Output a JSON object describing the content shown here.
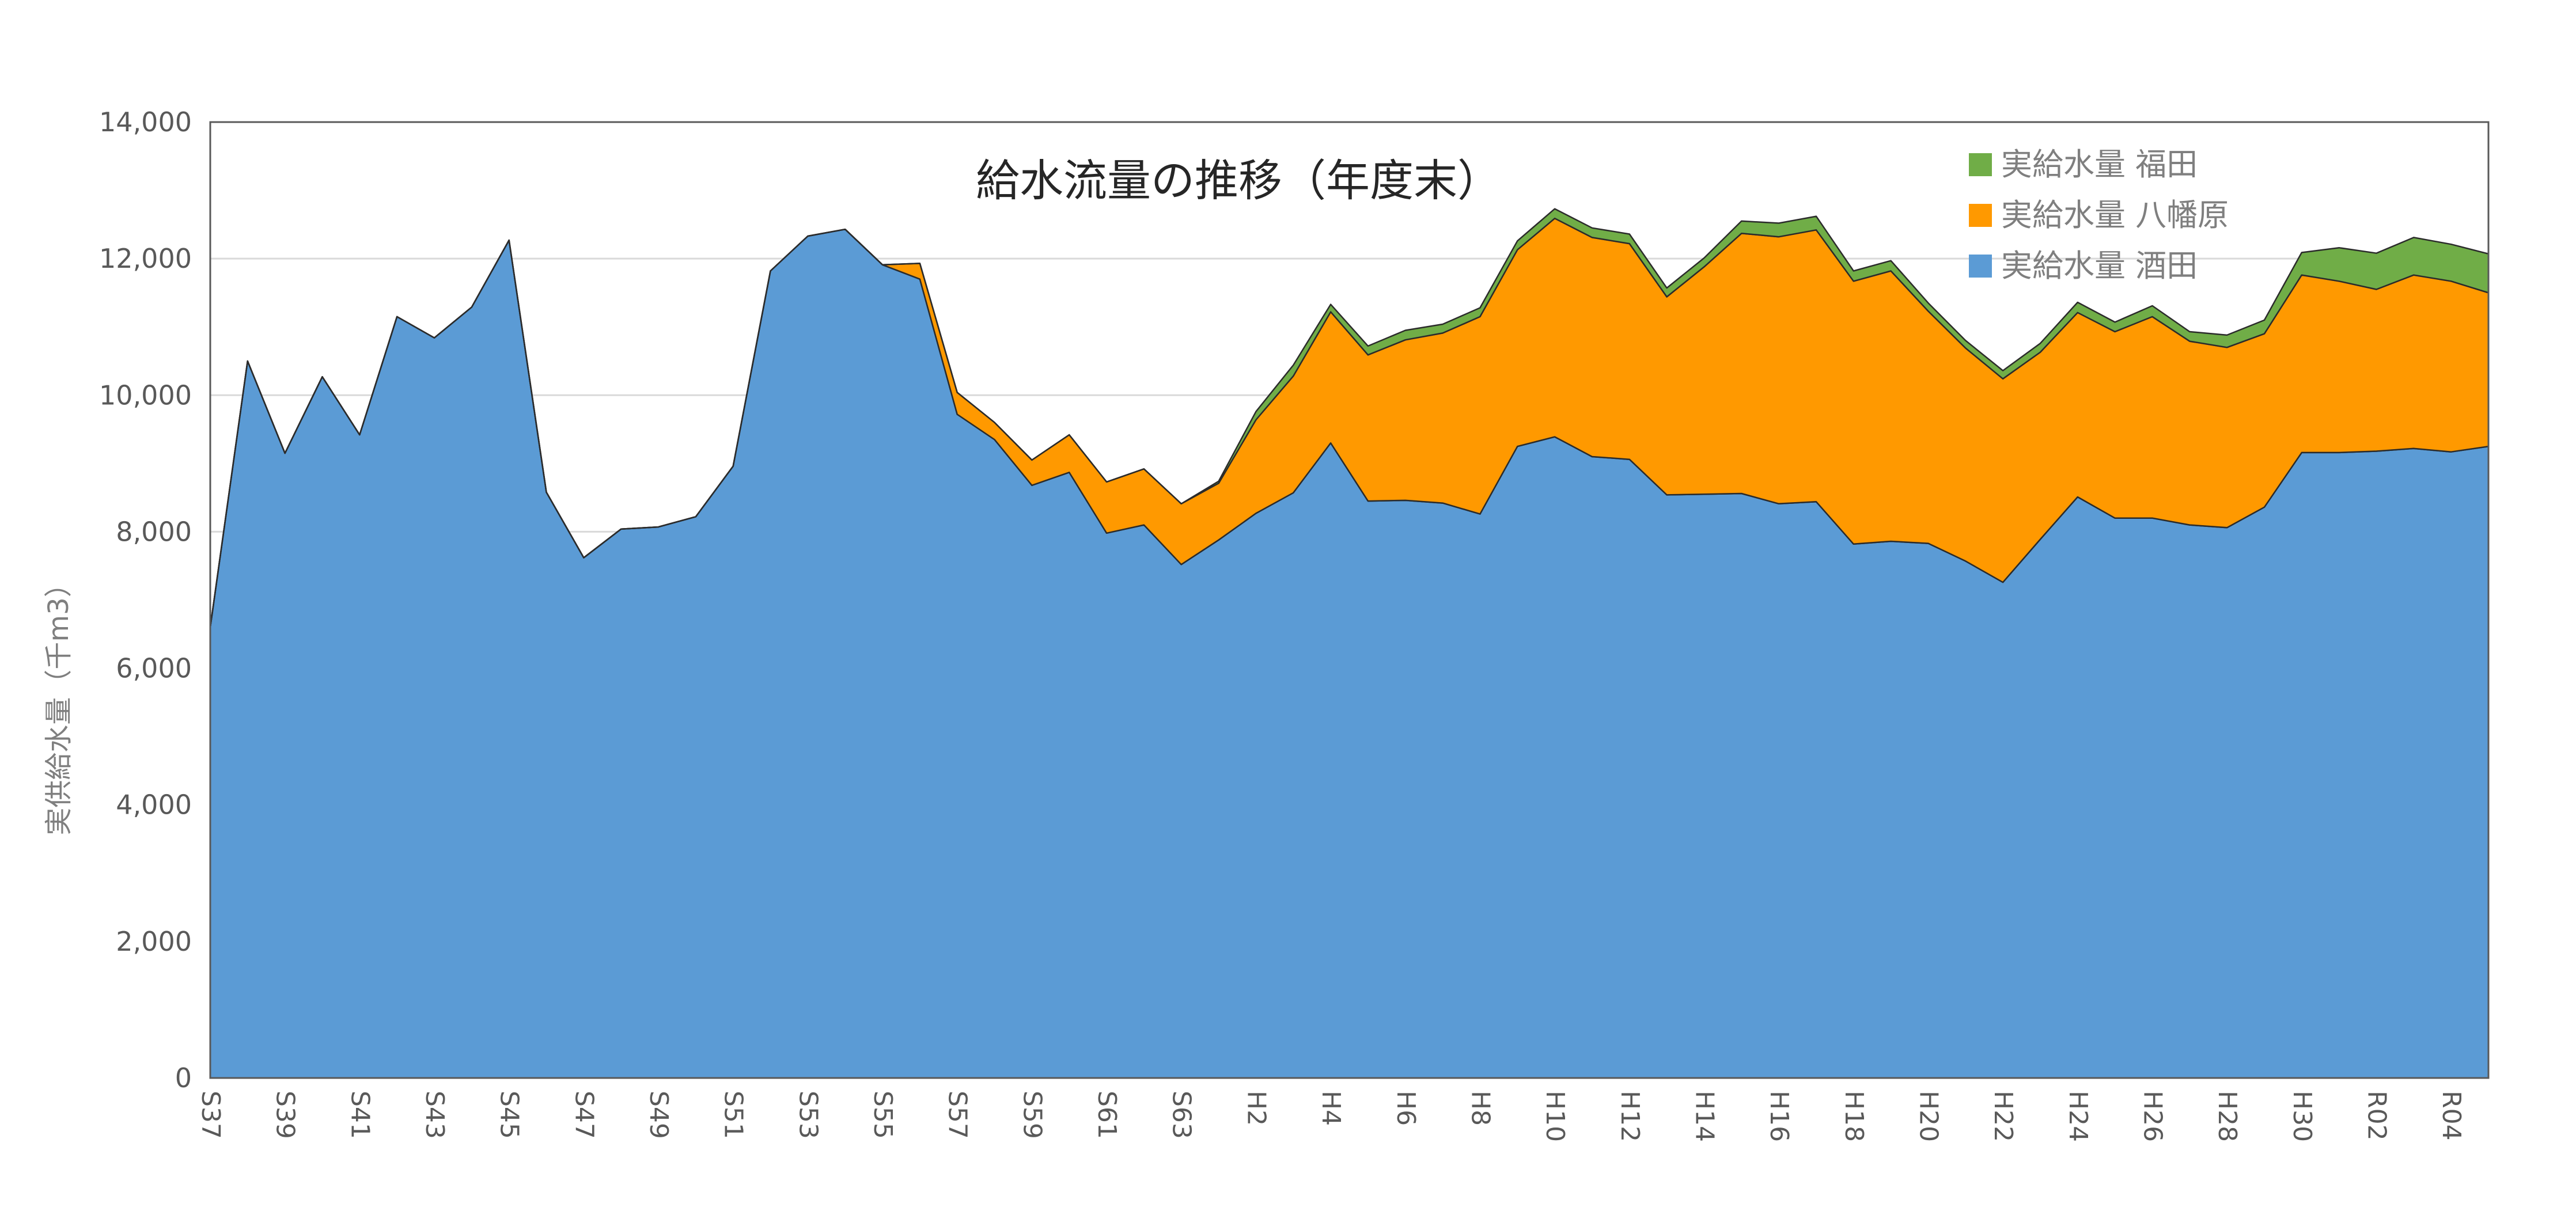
{
  "chart_data": {
    "type": "area",
    "stacked": true,
    "title": "給水流量の推移（年度末）",
    "ylabel": "実供給水量（千m3）",
    "xlabel": "",
    "ylim": [
      0,
      14000
    ],
    "y_ticks": [
      0,
      2000,
      4000,
      6000,
      8000,
      10000,
      12000,
      14000
    ],
    "y_tick_labels": [
      "0",
      "2,000",
      "4,000",
      "6,000",
      "8,000",
      "10,000",
      "12,000",
      "14,000"
    ],
    "grid": true,
    "legend_position": "top-right",
    "categories": [
      "S37",
      "S38",
      "S39",
      "S40",
      "S41",
      "S42",
      "S43",
      "S44",
      "S45",
      "S46",
      "S47",
      "S48",
      "S49",
      "S50",
      "S51",
      "S52",
      "S53",
      "S54",
      "S55",
      "S56",
      "S57",
      "S58",
      "S59",
      "S60",
      "S61",
      "S62",
      "S63",
      "H1",
      "H2",
      "H3",
      "H4",
      "H5",
      "H6",
      "H7",
      "H8",
      "H9",
      "H10",
      "H11",
      "H12",
      "H13",
      "H14",
      "H15",
      "H16",
      "H17",
      "H18",
      "H19",
      "H20",
      "H21",
      "H22",
      "H23",
      "H24",
      "H25",
      "H26",
      "H27",
      "H28",
      "H29",
      "H30",
      "R01",
      "R02",
      "R03",
      "R04",
      "R05"
    ],
    "x_tick_labels": [
      "S37",
      "S39",
      "S41",
      "S43",
      "S45",
      "S47",
      "S49",
      "S51",
      "S53",
      "S55",
      "S57",
      "S59",
      "S61",
      "S63",
      "H2",
      "H4",
      "H6",
      "H8",
      "H10",
      "H12",
      "H14",
      "H16",
      "H18",
      "H20",
      "H22",
      "H24",
      "H26",
      "H28",
      "H30",
      "R02",
      "R04"
    ],
    "series": [
      {
        "name": "実給水量 酒田",
        "color": "#5b9bd5",
        "values": [
          6600,
          10500,
          9150,
          10270,
          9420,
          11150,
          10840,
          11290,
          12270,
          8580,
          7620,
          8040,
          8070,
          8220,
          8960,
          11820,
          12330,
          12430,
          11910,
          11700,
          9720,
          9350,
          8680,
          8870,
          7980,
          8100,
          7520,
          7880,
          8270,
          8570,
          9300,
          8450,
          8460,
          8420,
          8260,
          9250,
          9390,
          9100,
          9060,
          8540,
          8550,
          8560,
          8410,
          8440,
          7820,
          7860,
          7830,
          7570,
          7260,
          7890,
          8510,
          8200,
          8200,
          8100,
          8060,
          8360,
          9160,
          9160,
          9180,
          9220,
          9170,
          9250
        ]
      },
      {
        "name": "実給水量 八幡原",
        "color": "#ff9900",
        "values": [
          0,
          0,
          0,
          0,
          0,
          0,
          0,
          0,
          0,
          0,
          0,
          0,
          0,
          0,
          0,
          0,
          0,
          0,
          0,
          230,
          320,
          250,
          370,
          550,
          750,
          820,
          890,
          830,
          1370,
          1710,
          1920,
          2140,
          2350,
          2490,
          2890,
          2880,
          3200,
          3210,
          3160,
          2900,
          3330,
          3810,
          3910,
          3980,
          3850,
          3960,
          3400,
          3120,
          2980,
          2740,
          2700,
          2730,
          2950,
          2690,
          2640,
          2540,
          2600,
          2510,
          2370,
          2540,
          2500,
          2250
        ]
      },
      {
        "name": "実給水量 福田",
        "color": "#70ad47",
        "values": [
          0,
          0,
          0,
          0,
          0,
          0,
          0,
          0,
          0,
          0,
          0,
          0,
          0,
          0,
          0,
          0,
          0,
          0,
          0,
          0,
          0,
          0,
          0,
          0,
          0,
          0,
          0,
          30,
          120,
          160,
          110,
          130,
          140,
          130,
          130,
          130,
          140,
          140,
          140,
          130,
          130,
          180,
          200,
          200,
          150,
          150,
          120,
          110,
          120,
          130,
          150,
          140,
          160,
          140,
          180,
          200,
          330,
          490,
          530,
          550,
          540,
          570
        ]
      }
    ]
  }
}
